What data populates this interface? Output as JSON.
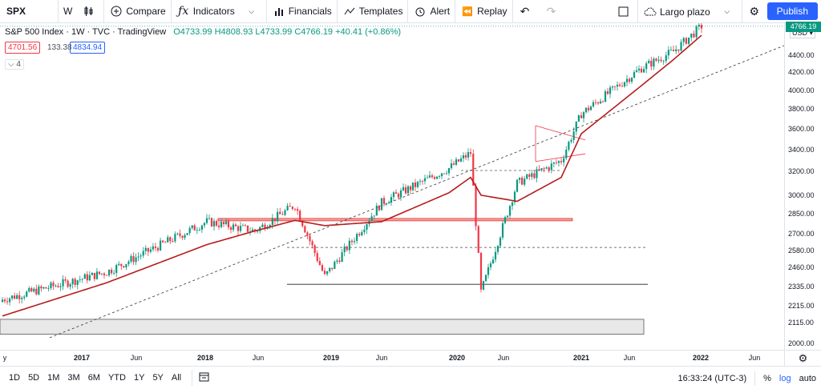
{
  "toolbar": {
    "symbol": "SPX",
    "interval": "W",
    "compare": "Compare",
    "indicators": "Indicators",
    "financials": "Financials",
    "templates": "Templates",
    "alert": "Alert",
    "replay": "Replay",
    "layout": "Largo plazo",
    "publish": "Publish"
  },
  "legend": {
    "title": "S&P 500 Index · 1W · TVC · TradingView",
    "open": "O4733.99",
    "high": "H4808.93",
    "low": "L4733.99",
    "close": "C4766.19",
    "change": "+40.41 (+0.86%)",
    "bid": "4701.56",
    "spread": "133.38",
    "ask": "4834.94",
    "indicators_collapsed": "4"
  },
  "price_axis": {
    "currency": "USD",
    "current_price": "4766.19",
    "labels": [
      "4400.00",
      "4200.00",
      "4000.00",
      "3800.00",
      "3600.00",
      "3400.00",
      "3200.00",
      "3000.00",
      "2850.00",
      "2700.00",
      "2580.00",
      "2460.00",
      "2335.00",
      "2215.00",
      "2115.00",
      "2000.00"
    ]
  },
  "time_axis": {
    "labels": [
      {
        "text": "y",
        "year": false
      },
      {
        "text": "2017",
        "year": true
      },
      {
        "text": "Jun",
        "year": false
      },
      {
        "text": "2018",
        "year": true
      },
      {
        "text": "Jun",
        "year": false
      },
      {
        "text": "2019",
        "year": true
      },
      {
        "text": "Jun",
        "year": false
      },
      {
        "text": "2020",
        "year": true
      },
      {
        "text": "Jun",
        "year": false
      },
      {
        "text": "2021",
        "year": true
      },
      {
        "text": "Jun",
        "year": false
      },
      {
        "text": "2022",
        "year": true
      },
      {
        "text": "Jun",
        "year": false
      }
    ]
  },
  "bottom": {
    "ranges": [
      "1D",
      "5D",
      "1M",
      "3M",
      "6M",
      "YTD",
      "1Y",
      "5Y",
      "All"
    ],
    "time": "16:33:24 (UTC-3)",
    "percent": "%",
    "log": "log",
    "auto": "auto"
  },
  "chart_data": {
    "type": "candlestick",
    "symbol": "SPX",
    "interval": "1W",
    "x": [
      "2016-12",
      "2017-06",
      "2018-01",
      "2018-06",
      "2018-09",
      "2018-12",
      "2019-06",
      "2019-12",
      "2020-02",
      "2020-03",
      "2020-06",
      "2020-09",
      "2021-01",
      "2021-06",
      "2021-09",
      "2021-12"
    ],
    "close": [
      2250,
      2430,
      2790,
      2720,
      2920,
      2400,
      2940,
      3230,
      3370,
      2300,
      3100,
      3300,
      3750,
      4250,
      4450,
      4766
    ],
    "moving_average": [
      2150,
      2360,
      2620,
      2720,
      2800,
      2760,
      2790,
      3020,
      3150,
      3000,
      2950,
      3150,
      3550,
      4050,
      4350,
      4650
    ],
    "colors": {
      "up": "#089981",
      "down": "#f23645",
      "ma": "#b71c1c"
    },
    "y_scale": "log"
  }
}
